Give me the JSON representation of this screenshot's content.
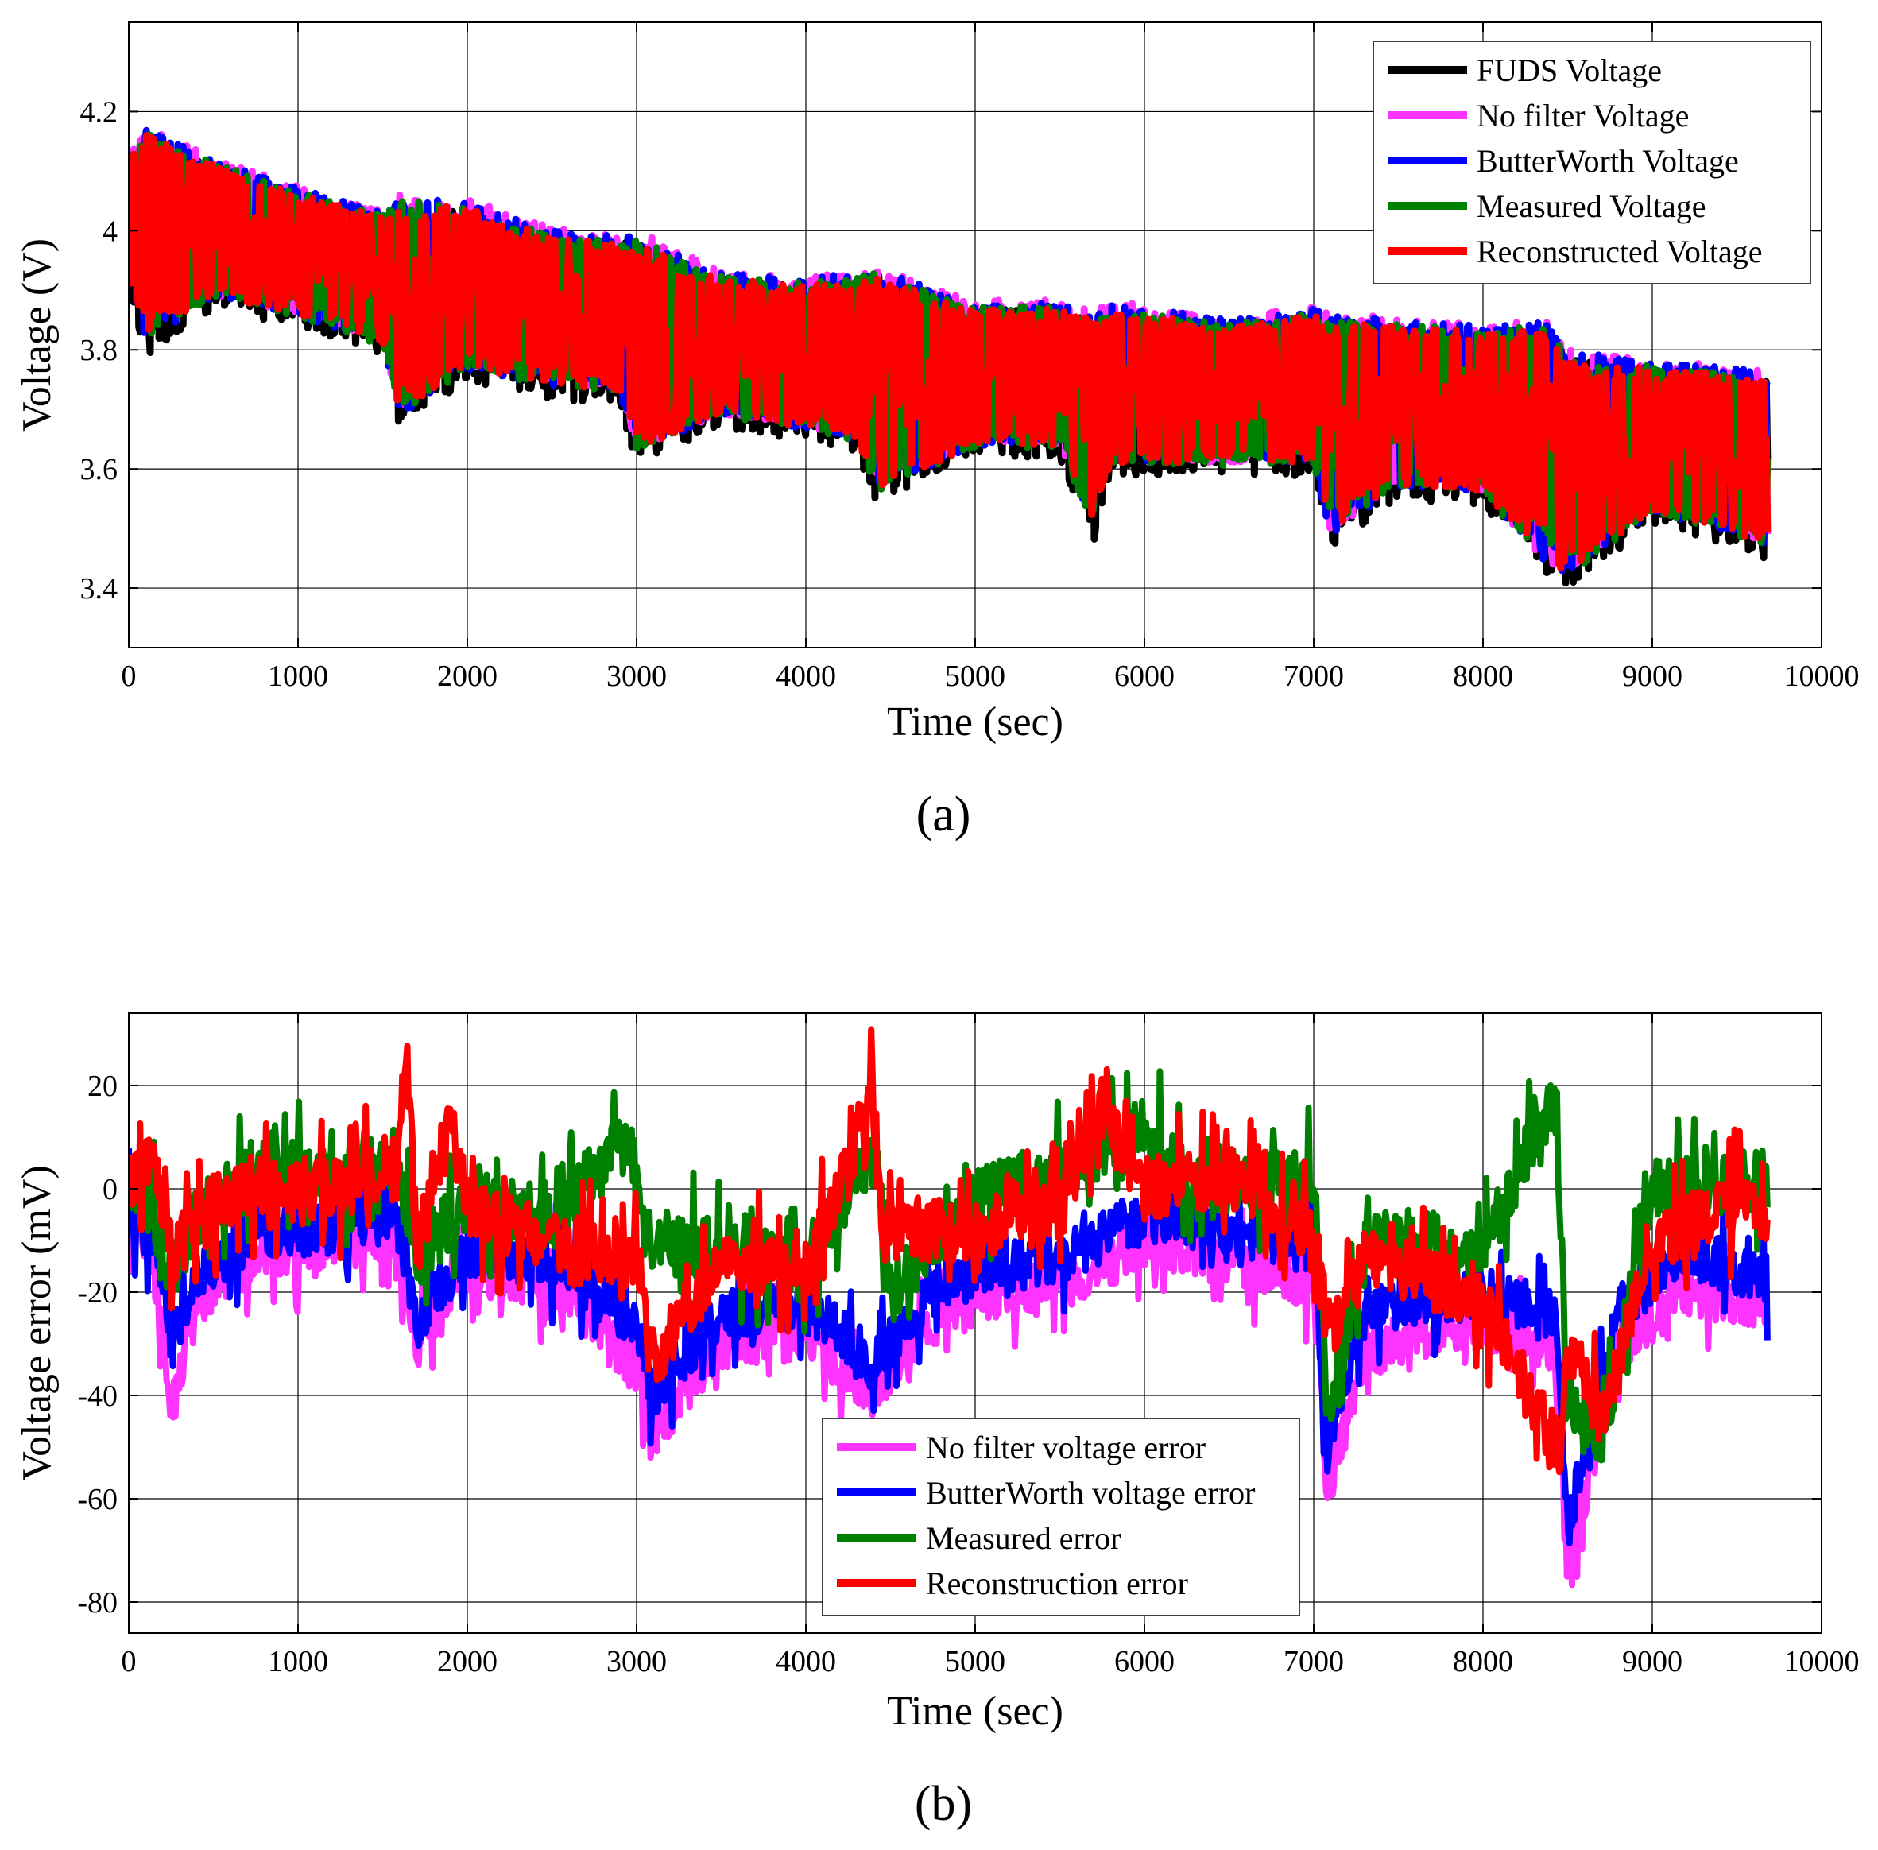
{
  "chart_data": [
    {
      "type": "line",
      "panel_label": "(a)",
      "xlabel": "Time (sec)",
      "ylabel": "Voltage (V)",
      "xlim": [
        0,
        10000
      ],
      "ylim": [
        3.3,
        4.35
      ],
      "xticks": [
        0,
        1000,
        2000,
        3000,
        4000,
        5000,
        6000,
        7000,
        8000,
        9000,
        10000
      ],
      "yticks": [
        3.4,
        3.6,
        3.8,
        4,
        4.2
      ],
      "xtick_labels": [
        "0",
        "1000",
        "2000",
        "3000",
        "4000",
        "5000",
        "6000",
        "7000",
        "8000",
        "9000",
        "10000"
      ],
      "ytick_labels": [
        "3.4",
        "3.6",
        "3.8",
        "4",
        "4.2"
      ],
      "grid": true,
      "legend_position": "top-right",
      "colors": {
        "black": "#000000",
        "magenta": "#ff33ff",
        "blue": "#0000ff",
        "green": "#008000",
        "red": "#ff0000"
      },
      "trend": {
        "x": [
          0,
          100,
          500,
          1000,
          1500,
          1600,
          2000,
          2500,
          2900,
          3000,
          3500,
          4000,
          4300,
          4400,
          5000,
          5500,
          5700,
          5800,
          6500,
          7000,
          7100,
          7500,
          8000,
          8400,
          8500,
          9000,
          9500,
          9680
        ],
        "center": [
          4.02,
          4.06,
          4.0,
          3.97,
          3.93,
          3.87,
          3.9,
          3.88,
          3.86,
          3.8,
          3.79,
          3.78,
          3.77,
          3.73,
          3.74,
          3.74,
          3.72,
          3.72,
          3.72,
          3.72,
          3.68,
          3.71,
          3.71,
          3.68,
          3.62,
          3.64,
          3.63,
          3.62
        ],
        "upper": [
          4.13,
          4.17,
          4.12,
          4.07,
          4.03,
          4.06,
          4.05,
          4.0,
          3.99,
          4.0,
          3.93,
          3.92,
          3.93,
          3.94,
          3.88,
          3.88,
          3.86,
          3.88,
          3.85,
          3.87,
          3.86,
          3.85,
          3.84,
          3.85,
          3.8,
          3.78,
          3.77,
          3.76
        ],
        "lower": [
          3.92,
          3.8,
          3.88,
          3.85,
          3.8,
          3.68,
          3.76,
          3.73,
          3.72,
          3.62,
          3.68,
          3.66,
          3.64,
          3.55,
          3.63,
          3.63,
          3.49,
          3.6,
          3.6,
          3.6,
          3.48,
          3.56,
          3.55,
          3.42,
          3.41,
          3.52,
          3.48,
          3.46
        ]
      },
      "series": [
        {
          "name": "FUDS Voltage",
          "color_key": "black",
          "offset": -0.012,
          "amp": 1.0
        },
        {
          "name": "No filter Voltage",
          "color_key": "magenta",
          "offset": 0.008,
          "amp": 0.97
        },
        {
          "name": "ButterWorth Voltage",
          "color_key": "blue",
          "offset": 0.004,
          "amp": 0.97
        },
        {
          "name": "Measured Voltage",
          "color_key": "green",
          "offset": 0.0,
          "amp": 0.95
        },
        {
          "name": "Reconstructed Voltage",
          "color_key": "red",
          "offset": 0.0,
          "amp": 0.92
        }
      ]
    },
    {
      "type": "line",
      "panel_label": "(b)",
      "xlabel": "Time (sec)",
      "ylabel": "Voltage error (mV)",
      "xlim": [
        0,
        10000
      ],
      "ylim": [
        -86,
        34
      ],
      "xticks": [
        0,
        1000,
        2000,
        3000,
        4000,
        5000,
        6000,
        7000,
        8000,
        9000,
        10000
      ],
      "yticks": [
        -80,
        -60,
        -40,
        -20,
        0,
        20
      ],
      "xtick_labels": [
        "0",
        "1000",
        "2000",
        "3000",
        "4000",
        "5000",
        "6000",
        "7000",
        "8000",
        "9000",
        "10000"
      ],
      "ytick_labels": [
        "-80",
        "-60",
        "-40",
        "-20",
        "0",
        "20"
      ],
      "grid": true,
      "legend_position": "bottom-center",
      "series": [
        {
          "name": "No filter voltage error",
          "color_key": "magenta",
          "x": [
            0,
            150,
            260,
            400,
            800,
            1200,
            1580,
            1700,
            2000,
            2500,
            3000,
            3080,
            3500,
            4000,
            4400,
            4800,
            5200,
            5600,
            6000,
            6500,
            7000,
            7080,
            7300,
            7600,
            8000,
            8420,
            8500,
            8800,
            9200,
            9680
          ],
          "values": [
            -6,
            -14,
            -43,
            -22,
            -12,
            -12,
            -8,
            -30,
            -16,
            -18,
            -35,
            -48,
            -30,
            -28,
            -39,
            -24,
            -20,
            -18,
            -10,
            -14,
            -18,
            -58,
            -32,
            -28,
            -26,
            -30,
            -73,
            -30,
            -20,
            -22
          ],
          "band": 5
        },
        {
          "name": "ButterWorth voltage error",
          "color_key": "blue",
          "x": [
            0,
            150,
            260,
            400,
            800,
            1200,
            1580,
            1700,
            2000,
            2500,
            3000,
            3080,
            3500,
            4000,
            4400,
            4800,
            5200,
            5600,
            6000,
            6500,
            7000,
            7080,
            7300,
            7600,
            8000,
            8420,
            8500,
            8800,
            9200,
            9680
          ],
          "values": [
            -4,
            -10,
            -30,
            -16,
            -8,
            -8,
            -4,
            -26,
            -12,
            -14,
            -26,
            -40,
            -24,
            -22,
            -34,
            -18,
            -15,
            -12,
            -5,
            -8,
            -12,
            -50,
            -24,
            -22,
            -20,
            -24,
            -66,
            -24,
            -12,
            -18
          ],
          "band": 5
        },
        {
          "name": "Measured error",
          "color_key": "green",
          "x": [
            0,
            150,
            260,
            400,
            800,
            1200,
            1580,
            1700,
            2000,
            2500,
            2950,
            3050,
            3500,
            4000,
            4400,
            4500,
            5000,
            5500,
            6000,
            6300,
            7000,
            7080,
            7300,
            7600,
            8000,
            8420,
            8500,
            8700,
            9000,
            9680
          ],
          "values": [
            2,
            -5,
            -16,
            -5,
            4,
            2,
            6,
            -14,
            -2,
            -6,
            10,
            -10,
            -12,
            -15,
            8,
            -20,
            -2,
            4,
            12,
            0,
            2,
            -45,
            -10,
            -10,
            -12,
            18,
            -40,
            -50,
            0,
            2
          ],
          "band": 6
        },
        {
          "name": "Reconstruction error",
          "color_key": "red",
          "x": [
            0,
            150,
            260,
            400,
            800,
            1200,
            1580,
            1640,
            1700,
            1900,
            2000,
            2500,
            3000,
            3080,
            3500,
            4000,
            4400,
            4450,
            5000,
            5500,
            5750,
            6000,
            6500,
            7000,
            7100,
            7300,
            7600,
            8000,
            8460,
            8500,
            8700,
            9000,
            9680
          ],
          "values": [
            0,
            8,
            -15,
            -4,
            0,
            0,
            4,
            28,
            -12,
            14,
            -4,
            -10,
            -14,
            -34,
            -14,
            -16,
            18,
            -8,
            -8,
            -4,
            16,
            0,
            2,
            -8,
            -30,
            -14,
            -16,
            -22,
            -52,
            -30,
            -44,
            -10,
            0
          ],
          "band": 6
        }
      ]
    }
  ]
}
